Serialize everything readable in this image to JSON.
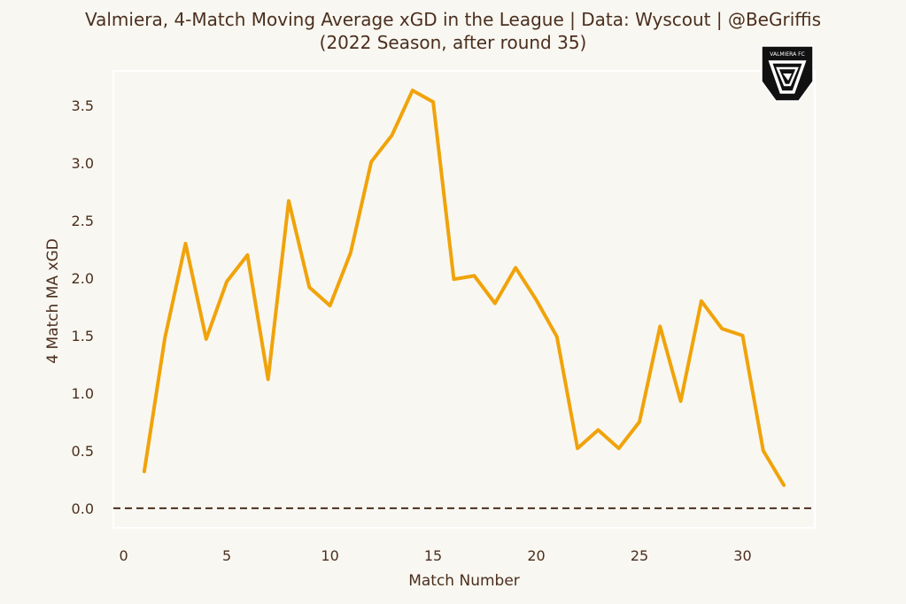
{
  "chart_data": {
    "type": "line",
    "title": "Valmiera, 4-Match Moving Average xGD in the League  |  Data: Wyscout  |  @BeGriffis",
    "subtitle": "(2022 Season, after round 35)",
    "xlabel": "Match Number",
    "ylabel": "4 Match MA xGD",
    "xlim": [
      -0.5,
      33.5
    ],
    "ylim": [
      -0.17,
      3.8
    ],
    "xticks": [
      0,
      5,
      10,
      15,
      20,
      25,
      30
    ],
    "yticks": [
      0.0,
      0.5,
      1.0,
      1.5,
      2.0,
      2.5,
      3.0,
      3.5
    ],
    "grid": false,
    "reference_line": {
      "y": 0,
      "style": "dashed",
      "color": "#4a2f1e"
    },
    "series": [
      {
        "name": "4-Match MA xGD",
        "color": "#f0a30a",
        "x": [
          1,
          2,
          3,
          4,
          5,
          6,
          7,
          8,
          9,
          10,
          11,
          12,
          13,
          14,
          15,
          16,
          17,
          18,
          19,
          20,
          21,
          22,
          23,
          24,
          25,
          26,
          27,
          28,
          29,
          30,
          31,
          32
        ],
        "values": [
          0.32,
          1.48,
          2.3,
          1.47,
          1.97,
          2.2,
          1.12,
          2.67,
          1.92,
          1.76,
          2.22,
          3.01,
          3.24,
          3.63,
          3.53,
          1.99,
          2.02,
          1.78,
          2.09,
          1.81,
          1.49,
          0.52,
          0.68,
          0.52,
          0.75,
          1.58,
          0.93,
          1.8,
          1.56,
          1.5,
          0.5,
          0.2
        ]
      }
    ]
  },
  "logo": {
    "text": "VALMIERA FC",
    "name": "Valmiera FC crest"
  }
}
